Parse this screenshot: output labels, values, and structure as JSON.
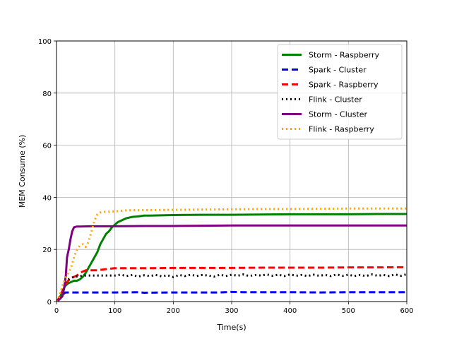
{
  "chart_data": {
    "type": "line",
    "title": "",
    "xlabel": "Time(s)",
    "ylabel": "MEM Consume (%)",
    "xlim": [
      0,
      600
    ],
    "ylim": [
      0,
      100
    ],
    "xticks": [
      0,
      100,
      200,
      300,
      400,
      500,
      600
    ],
    "yticks": [
      0,
      20,
      40,
      60,
      80,
      100
    ],
    "grid": true,
    "legend_position": "top-right",
    "series": [
      {
        "name": "Storm - Raspberry",
        "color": "#008000",
        "style": "solid",
        "points": [
          [
            0,
            0
          ],
          [
            5,
            1
          ],
          [
            10,
            4
          ],
          [
            15,
            6
          ],
          [
            20,
            7
          ],
          [
            25,
            7.5
          ],
          [
            30,
            8
          ],
          [
            35,
            8
          ],
          [
            40,
            8.5
          ],
          [
            45,
            9.5
          ],
          [
            50,
            11
          ],
          [
            55,
            13
          ],
          [
            60,
            15
          ],
          [
            65,
            17
          ],
          [
            70,
            19
          ],
          [
            75,
            22
          ],
          [
            80,
            24
          ],
          [
            85,
            26
          ],
          [
            90,
            27
          ],
          [
            95,
            28.5
          ],
          [
            100,
            29.5
          ],
          [
            105,
            30.5
          ],
          [
            110,
            31
          ],
          [
            115,
            31.5
          ],
          [
            120,
            32
          ],
          [
            130,
            32.5
          ],
          [
            140,
            32.7
          ],
          [
            150,
            33
          ],
          [
            160,
            33
          ],
          [
            180,
            33.1
          ],
          [
            200,
            33.2
          ],
          [
            250,
            33.3
          ],
          [
            300,
            33.3
          ],
          [
            350,
            33.4
          ],
          [
            400,
            33.5
          ],
          [
            450,
            33.5
          ],
          [
            500,
            33.5
          ],
          [
            550,
            33.6
          ],
          [
            600,
            33.6
          ]
        ]
      },
      {
        "name": "Spark - Cluster",
        "color": "#0000ff",
        "style": "dashed",
        "points": [
          [
            0,
            0
          ],
          [
            5,
            1
          ],
          [
            10,
            2.5
          ],
          [
            15,
            3.5
          ],
          [
            20,
            3.5
          ],
          [
            40,
            3.5
          ],
          [
            60,
            3.5
          ],
          [
            100,
            3.5
          ],
          [
            140,
            3.6
          ],
          [
            150,
            3.4
          ],
          [
            200,
            3.5
          ],
          [
            250,
            3.5
          ],
          [
            280,
            3.5
          ],
          [
            300,
            3.7
          ],
          [
            320,
            3.6
          ],
          [
            350,
            3.6
          ],
          [
            400,
            3.6
          ],
          [
            450,
            3.5
          ],
          [
            500,
            3.6
          ],
          [
            550,
            3.6
          ],
          [
            600,
            3.6
          ]
        ]
      },
      {
        "name": "Spark - Raspberry",
        "color": "#ff0000",
        "style": "dashed",
        "points": [
          [
            0,
            0
          ],
          [
            5,
            1.5
          ],
          [
            10,
            4
          ],
          [
            15,
            6
          ],
          [
            20,
            8
          ],
          [
            25,
            9
          ],
          [
            30,
            9.5
          ],
          [
            35,
            10
          ],
          [
            40,
            11
          ],
          [
            45,
            11.5
          ],
          [
            50,
            12
          ],
          [
            60,
            12
          ],
          [
            70,
            12
          ],
          [
            80,
            12.3
          ],
          [
            90,
            12.6
          ],
          [
            100,
            12.8
          ],
          [
            150,
            12.8
          ],
          [
            200,
            12.9
          ],
          [
            250,
            12.9
          ],
          [
            300,
            12.9
          ],
          [
            350,
            13
          ],
          [
            400,
            13
          ],
          [
            450,
            13
          ],
          [
            500,
            13.1
          ],
          [
            550,
            13.1
          ],
          [
            600,
            13.2
          ]
        ]
      },
      {
        "name": "Flink - Cluster",
        "color": "#000000",
        "style": "dotted",
        "points": [
          [
            0,
            0
          ],
          [
            5,
            2
          ],
          [
            10,
            5
          ],
          [
            15,
            7.5
          ],
          [
            20,
            8.5
          ],
          [
            25,
            9
          ],
          [
            30,
            9.5
          ],
          [
            40,
            9.8
          ],
          [
            50,
            10
          ],
          [
            60,
            10
          ],
          [
            80,
            10
          ],
          [
            100,
            10
          ],
          [
            110,
            10.3
          ],
          [
            120,
            9.8
          ],
          [
            130,
            10.2
          ],
          [
            140,
            9.6
          ],
          [
            150,
            10.1
          ],
          [
            160,
            9.8
          ],
          [
            170,
            10.2
          ],
          [
            180,
            9.7
          ],
          [
            190,
            10.1
          ],
          [
            200,
            9.4
          ],
          [
            210,
            10.2
          ],
          [
            220,
            9.8
          ],
          [
            230,
            10.3
          ],
          [
            240,
            9.8
          ],
          [
            250,
            10.2
          ],
          [
            260,
            10
          ],
          [
            270,
            9.6
          ],
          [
            280,
            10.3
          ],
          [
            290,
            9.8
          ],
          [
            300,
            10.3
          ],
          [
            310,
            9.9
          ],
          [
            320,
            10.4
          ],
          [
            330,
            9.8
          ],
          [
            340,
            10.2
          ],
          [
            350,
            10
          ],
          [
            360,
            10.4
          ],
          [
            370,
            9.9
          ],
          [
            380,
            10.3
          ],
          [
            390,
            9.8
          ],
          [
            400,
            10.4
          ],
          [
            410,
            9.9
          ],
          [
            420,
            10.2
          ],
          [
            430,
            9.8
          ],
          [
            440,
            10.3
          ],
          [
            450,
            9.9
          ],
          [
            460,
            10.2
          ],
          [
            470,
            9.8
          ],
          [
            480,
            10.4
          ],
          [
            490,
            9.9
          ],
          [
            500,
            10.3
          ],
          [
            510,
            9.8
          ],
          [
            520,
            10.2
          ],
          [
            530,
            9.8
          ],
          [
            540,
            10.4
          ],
          [
            550,
            9.9
          ],
          [
            560,
            10.2
          ],
          [
            570,
            9.8
          ],
          [
            580,
            10.4
          ],
          [
            590,
            9.9
          ],
          [
            600,
            10.5
          ]
        ]
      },
      {
        "name": "Storm - Cluster",
        "color": "#800080",
        "style": "solid",
        "points": [
          [
            0,
            0
          ],
          [
            3,
            0.5
          ],
          [
            6,
            1
          ],
          [
            10,
            2
          ],
          [
            13,
            5
          ],
          [
            16,
            10
          ],
          [
            18,
            17
          ],
          [
            21,
            20
          ],
          [
            24,
            24
          ],
          [
            27,
            27
          ],
          [
            30,
            28.5
          ],
          [
            35,
            28.8
          ],
          [
            40,
            28.8
          ],
          [
            60,
            28.9
          ],
          [
            80,
            28.9
          ],
          [
            100,
            28.9
          ],
          [
            150,
            29
          ],
          [
            200,
            29
          ],
          [
            250,
            29.1
          ],
          [
            300,
            29.2
          ],
          [
            350,
            29.2
          ],
          [
            400,
            29.2
          ],
          [
            450,
            29.2
          ],
          [
            500,
            29.2
          ],
          [
            550,
            29.2
          ],
          [
            600,
            29.2
          ]
        ]
      },
      {
        "name": "Flink - Raspberry",
        "color": "#ffa500",
        "style": "dotted",
        "points": [
          [
            0,
            0
          ],
          [
            5,
            2
          ],
          [
            10,
            6
          ],
          [
            15,
            9
          ],
          [
            20,
            11
          ],
          [
            25,
            13
          ],
          [
            30,
            17
          ],
          [
            35,
            20
          ],
          [
            40,
            21.5
          ],
          [
            45,
            22
          ],
          [
            50,
            21
          ],
          [
            55,
            23
          ],
          [
            60,
            27
          ],
          [
            65,
            31
          ],
          [
            70,
            33.5
          ],
          [
            75,
            34.2
          ],
          [
            80,
            34.4
          ],
          [
            90,
            34.5
          ],
          [
            100,
            34.6
          ],
          [
            110,
            34.8
          ],
          [
            120,
            35
          ],
          [
            150,
            35.1
          ],
          [
            200,
            35.2
          ],
          [
            250,
            35.3
          ],
          [
            300,
            35.4
          ],
          [
            350,
            35.5
          ],
          [
            400,
            35.5
          ],
          [
            450,
            35.6
          ],
          [
            500,
            35.7
          ],
          [
            550,
            35.7
          ],
          [
            600,
            35.7
          ]
        ]
      }
    ]
  }
}
